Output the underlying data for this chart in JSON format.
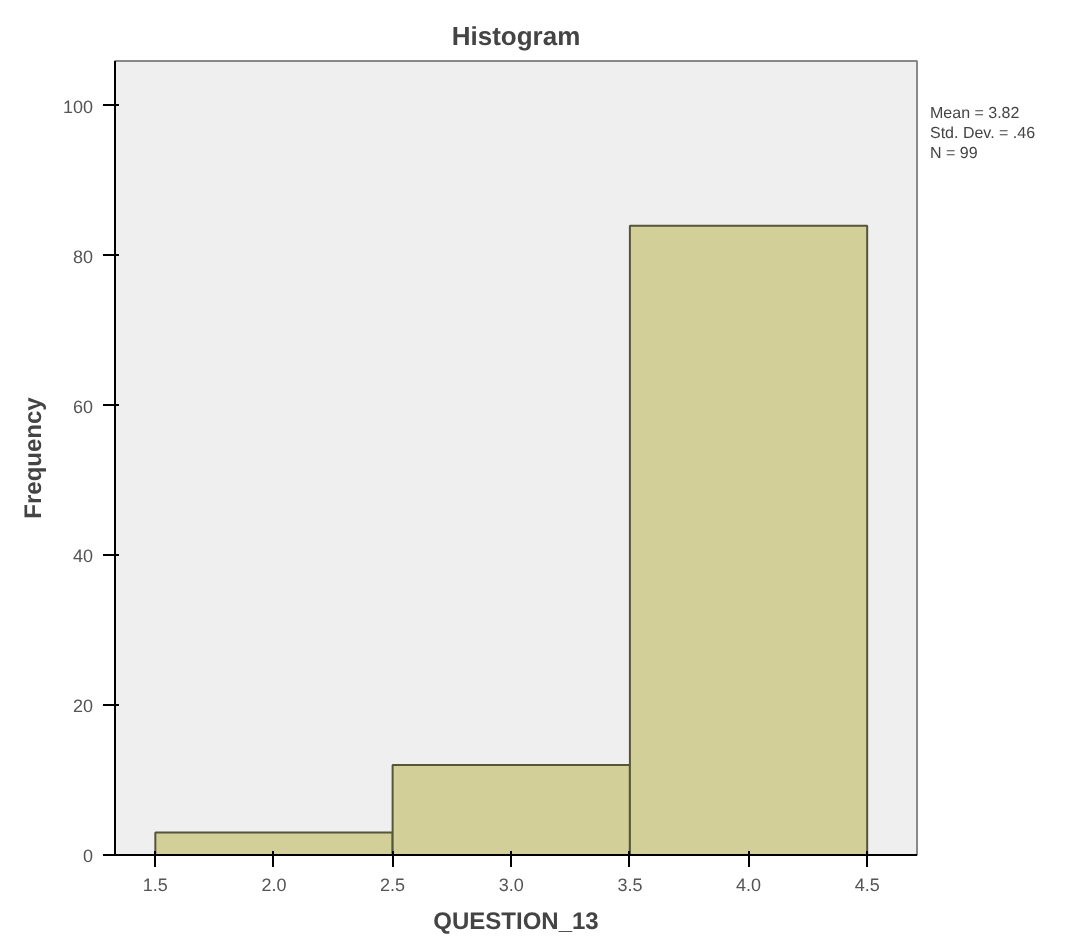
{
  "chart_data": {
    "type": "histogram",
    "title": "Histogram",
    "xlabel": "QUESTION_13",
    "ylabel": "Frequency",
    "bins": [
      1.5,
      2.5,
      3.5,
      4.5
    ],
    "values": [
      3,
      12,
      84
    ],
    "color": "#d3cf98",
    "xlim": [
      1.33,
      4.71
    ],
    "ylim": [
      0,
      106
    ],
    "xticks": [
      {
        "value": 1.5,
        "label": "1.5"
      },
      {
        "value": 2,
        "label": "2.0"
      },
      {
        "value": 2.5,
        "label": "2.5"
      },
      {
        "value": 3,
        "label": "3.0"
      },
      {
        "value": 3.5,
        "label": "3.5"
      },
      {
        "value": 4,
        "label": "4.0"
      },
      {
        "value": 4.5,
        "label": "4.5"
      }
    ],
    "yticks": [
      0,
      20,
      40,
      60,
      80,
      100
    ],
    "annotations": [
      "Mean = 3.82",
      "Std. Dev. = .46",
      "N = 99"
    ],
    "grid": false
  }
}
